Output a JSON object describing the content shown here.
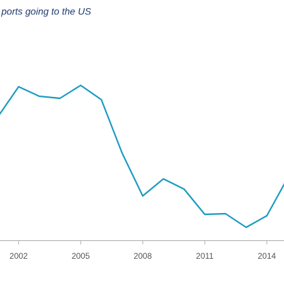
{
  "chart_data": {
    "type": "line",
    "title": "ports going to the US",
    "x": [
      2001,
      2002,
      2003,
      2004,
      2005,
      2006,
      2007,
      2008,
      2009,
      2010,
      2011,
      2012,
      2013,
      2014,
      2015
    ],
    "series": [
      {
        "color": "#1a9bc0",
        "values": [
          181,
          225,
          211,
          208,
          227,
          206,
          128,
          65,
          90,
          75,
          38,
          39,
          19,
          36,
          91
        ]
      }
    ],
    "xlim": [
      2001.1,
      2014.83
    ],
    "xticks": [
      2002,
      2005,
      2008,
      2011,
      2014
    ],
    "ylim": [
      0,
      352
    ]
  }
}
